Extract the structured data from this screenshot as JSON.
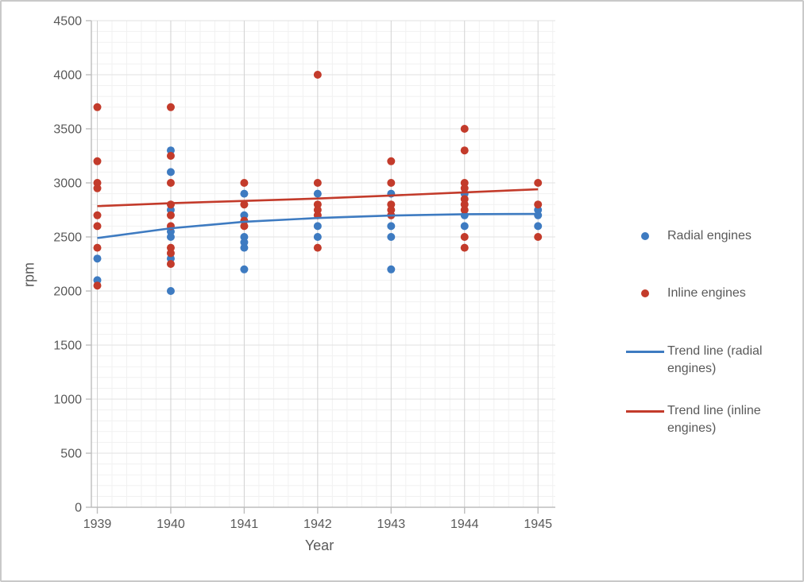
{
  "chart_data": {
    "type": "scatter",
    "title": "",
    "xlabel": "Year",
    "ylabel": "rpm",
    "x_ticks": [
      "1939",
      "1940",
      "1941",
      "1942",
      "1943",
      "1944",
      "1945"
    ],
    "x_range": [
      1939,
      1945
    ],
    "ylim": [
      0,
      4500
    ],
    "y_tick_step": 500,
    "grid": {
      "minor_x_divisions_per_year": 5,
      "minor_y_step": 100,
      "major_y_step": 500
    },
    "legend_position": "right",
    "series": [
      {
        "name": "Radial engines",
        "type": "scatter",
        "color": "#3E7BC1",
        "points": [
          [
            1939,
            2300
          ],
          [
            1939,
            2100
          ],
          [
            1940,
            3300
          ],
          [
            1940,
            3100
          ],
          [
            1940,
            2750
          ],
          [
            1940,
            2550
          ],
          [
            1940,
            2500
          ],
          [
            1940,
            2300
          ],
          [
            1940,
            2000
          ],
          [
            1941,
            2900
          ],
          [
            1941,
            2700
          ],
          [
            1941,
            2500
          ],
          [
            1941,
            2450
          ],
          [
            1941,
            2400
          ],
          [
            1941,
            2200
          ],
          [
            1942,
            2900
          ],
          [
            1942,
            2600
          ],
          [
            1942,
            2500
          ],
          [
            1943,
            2900
          ],
          [
            1943,
            2600
          ],
          [
            1943,
            2500
          ],
          [
            1943,
            2200
          ],
          [
            1944,
            2900
          ],
          [
            1944,
            2700
          ],
          [
            1944,
            2600
          ],
          [
            1945,
            2750
          ],
          [
            1945,
            2700
          ],
          [
            1945,
            2600
          ]
        ]
      },
      {
        "name": "Inline engines",
        "type": "scatter",
        "color": "#C33B2B",
        "points": [
          [
            1939,
            3700
          ],
          [
            1939,
            3200
          ],
          [
            1939,
            3000
          ],
          [
            1939,
            2950
          ],
          [
            1939,
            2700
          ],
          [
            1939,
            2600
          ],
          [
            1939,
            2400
          ],
          [
            1939,
            2050
          ],
          [
            1940,
            3700
          ],
          [
            1940,
            3250
          ],
          [
            1940,
            3000
          ],
          [
            1940,
            2800
          ],
          [
            1940,
            2700
          ],
          [
            1940,
            2600
          ],
          [
            1940,
            2400
          ],
          [
            1940,
            2350
          ],
          [
            1940,
            2250
          ],
          [
            1941,
            3000
          ],
          [
            1941,
            2800
          ],
          [
            1941,
            2650
          ],
          [
            1941,
            2600
          ],
          [
            1942,
            4000
          ],
          [
            1942,
            3000
          ],
          [
            1942,
            2800
          ],
          [
            1942,
            2750
          ],
          [
            1942,
            2700
          ],
          [
            1942,
            2400
          ],
          [
            1943,
            3200
          ],
          [
            1943,
            3000
          ],
          [
            1943,
            2800
          ],
          [
            1943,
            2750
          ],
          [
            1943,
            2700
          ],
          [
            1944,
            3500
          ],
          [
            1944,
            3300
          ],
          [
            1944,
            3000
          ],
          [
            1944,
            2950
          ],
          [
            1944,
            2850
          ],
          [
            1944,
            2800
          ],
          [
            1944,
            2750
          ],
          [
            1944,
            2500
          ],
          [
            1944,
            2400
          ],
          [
            1945,
            3000
          ],
          [
            1945,
            2800
          ],
          [
            1945,
            2500
          ]
        ]
      },
      {
        "name": "Trend line (radial engines)",
        "type": "line",
        "color": "#3E7BC1",
        "points": [
          [
            1939,
            2490
          ],
          [
            1940,
            2580
          ],
          [
            1941,
            2640
          ],
          [
            1942,
            2675
          ],
          [
            1943,
            2698
          ],
          [
            1944,
            2710
          ],
          [
            1945,
            2713
          ]
        ]
      },
      {
        "name": "Trend line (inline engines)",
        "type": "line",
        "color": "#C33B2B",
        "points": [
          [
            1939,
            2785
          ],
          [
            1940,
            2812
          ],
          [
            1941,
            2833
          ],
          [
            1942,
            2855
          ],
          [
            1943,
            2883
          ],
          [
            1944,
            2912
          ],
          [
            1945,
            2941
          ]
        ]
      }
    ],
    "legend": {
      "items": [
        {
          "label": "Radial engines",
          "marker": "dot",
          "color": "#3E7BC1"
        },
        {
          "label": "Inline engines",
          "marker": "dot",
          "color": "#C33B2B"
        },
        {
          "label": "Trend line (radial engines)",
          "marker": "line",
          "color": "#3E7BC1"
        },
        {
          "label": "Trend line (inline engines)",
          "marker": "line",
          "color": "#C33B2B"
        }
      ]
    },
    "colors": {
      "text": "#595959",
      "axis": "#bdbdbd",
      "grid_major_v": "#d2d2d2",
      "grid_major_h": "#e2e2e2",
      "grid_minor": "#f1f1f1"
    }
  }
}
